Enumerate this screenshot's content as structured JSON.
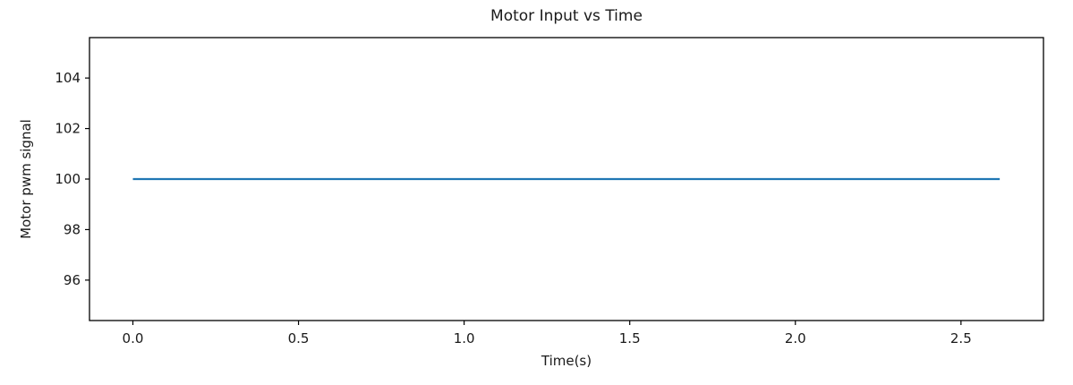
{
  "chart_data": {
    "type": "line",
    "title": "Motor Input vs Time",
    "xlabel": "Time(s)",
    "ylabel": "Motor pwm signal",
    "xlim": [
      -0.131,
      2.749
    ],
    "ylim": [
      94.4,
      105.6
    ],
    "xticks": [
      {
        "v": 0.0,
        "label": "0.0"
      },
      {
        "v": 0.5,
        "label": "0.5"
      },
      {
        "v": 1.0,
        "label": "1.0"
      },
      {
        "v": 1.5,
        "label": "1.5"
      },
      {
        "v": 2.0,
        "label": "2.0"
      },
      {
        "v": 2.5,
        "label": "2.5"
      }
    ],
    "yticks": [
      {
        "v": 96,
        "label": "96"
      },
      {
        "v": 98,
        "label": "98"
      },
      {
        "v": 100,
        "label": "100"
      },
      {
        "v": 102,
        "label": "102"
      },
      {
        "v": 104,
        "label": "104"
      }
    ],
    "grid": false,
    "legend": false,
    "background_color": "#ffffff",
    "axis_color": "#000000",
    "text_color": "#1a1a1a",
    "series": [
      {
        "name": "motor-pwm-signal",
        "color": "#1f77b4",
        "line_width": 2.2,
        "x": [
          0.0,
          2.617
        ],
        "y": [
          100.0,
          100.0
        ]
      }
    ]
  }
}
